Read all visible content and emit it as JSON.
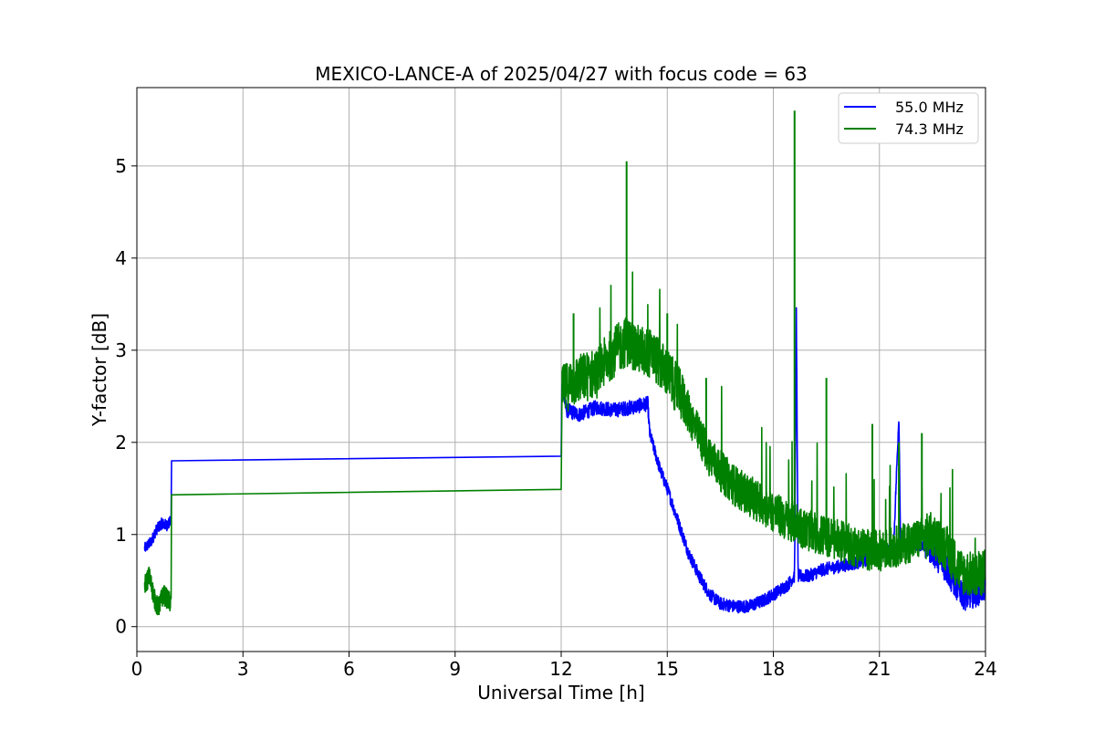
{
  "chart_data": {
    "type": "line",
    "title": "MEXICO-LANCE-A of 2025/04/27 with focus code = 63",
    "xlabel": "Universal Time [h]",
    "ylabel": "Y-factor [dB]",
    "xlim": [
      0,
      24
    ],
    "ylim": [
      -0.27,
      5.85
    ],
    "xticks": [
      0,
      3,
      6,
      9,
      12,
      15,
      18,
      21,
      24
    ],
    "yticks": [
      0,
      1,
      2,
      3,
      4,
      5
    ],
    "grid": true,
    "legend_position": "top-right",
    "series": [
      {
        "name": "55.0 MHz",
        "color": "#0000ff",
        "points": [
          [
            0.22,
            0.85
          ],
          [
            0.4,
            0.92
          ],
          [
            0.55,
            1.05
          ],
          [
            0.7,
            1.12
          ],
          [
            0.85,
            1.1
          ],
          [
            0.97,
            1.15
          ],
          [
            0.98,
            1.8
          ],
          [
            12.0,
            1.85
          ],
          [
            12.02,
            2.6
          ],
          [
            12.15,
            2.35
          ],
          [
            12.5,
            2.3
          ],
          [
            13.0,
            2.38
          ],
          [
            13.5,
            2.35
          ],
          [
            14.0,
            2.38
          ],
          [
            14.45,
            2.42
          ],
          [
            14.5,
            2.1
          ],
          [
            14.8,
            1.7
          ],
          [
            15.0,
            1.5
          ],
          [
            15.3,
            1.15
          ],
          [
            15.6,
            0.8
          ],
          [
            15.9,
            0.55
          ],
          [
            16.2,
            0.35
          ],
          [
            16.5,
            0.25
          ],
          [
            16.9,
            0.22
          ],
          [
            17.3,
            0.22
          ],
          [
            17.7,
            0.28
          ],
          [
            18.0,
            0.35
          ],
          [
            18.4,
            0.45
          ],
          [
            18.6,
            0.55
          ],
          [
            18.65,
            3.4
          ],
          [
            18.7,
            0.55
          ],
          [
            19.0,
            0.55
          ],
          [
            19.4,
            0.62
          ],
          [
            19.8,
            0.65
          ],
          [
            20.2,
            0.68
          ],
          [
            20.6,
            0.72
          ],
          [
            21.0,
            0.78
          ],
          [
            21.4,
            0.85
          ],
          [
            21.55,
            2.3
          ],
          [
            21.6,
            0.88
          ],
          [
            22.0,
            0.9
          ],
          [
            22.4,
            0.88
          ],
          [
            22.8,
            0.7
          ],
          [
            23.1,
            0.5
          ],
          [
            23.4,
            0.35
          ],
          [
            23.7,
            0.38
          ],
          [
            24.0,
            0.45
          ]
        ]
      },
      {
        "name": "74.3 MHz",
        "color": "#008000",
        "points": [
          [
            0.22,
            0.45
          ],
          [
            0.35,
            0.55
          ],
          [
            0.5,
            0.3
          ],
          [
            0.6,
            0.2
          ],
          [
            0.75,
            0.35
          ],
          [
            0.97,
            0.25
          ],
          [
            0.98,
            1.43
          ],
          [
            12.0,
            1.49
          ],
          [
            12.02,
            2.55
          ],
          [
            12.3,
            2.65
          ],
          [
            12.6,
            2.7
          ],
          [
            13.0,
            2.75
          ],
          [
            13.4,
            2.95
          ],
          [
            13.85,
            3.1
          ],
          [
            14.2,
            3.0
          ],
          [
            14.6,
            2.95
          ],
          [
            15.0,
            2.75
          ],
          [
            15.4,
            2.5
          ],
          [
            15.8,
            2.15
          ],
          [
            16.2,
            1.85
          ],
          [
            16.6,
            1.65
          ],
          [
            17.0,
            1.5
          ],
          [
            17.4,
            1.4
          ],
          [
            17.8,
            1.3
          ],
          [
            18.2,
            1.2
          ],
          [
            18.55,
            1.1
          ],
          [
            18.6,
            1.15
          ],
          [
            18.9,
            1.05
          ],
          [
            19.3,
            1.0
          ],
          [
            19.7,
            0.95
          ],
          [
            20.1,
            0.9
          ],
          [
            20.5,
            0.85
          ],
          [
            20.9,
            0.82
          ],
          [
            21.3,
            0.85
          ],
          [
            21.7,
            0.9
          ],
          [
            22.1,
            0.95
          ],
          [
            22.5,
            1.0
          ],
          [
            22.9,
            0.85
          ],
          [
            23.3,
            0.6
          ],
          [
            23.7,
            0.55
          ],
          [
            24.0,
            0.6
          ]
        ],
        "spikes": [
          [
            12.35,
            3.4
          ],
          [
            13.85,
            5.05
          ],
          [
            15.0,
            3.4
          ],
          [
            16.1,
            2.7
          ],
          [
            18.6,
            5.6
          ],
          [
            19.5,
            2.7
          ],
          [
            20.8,
            2.2
          ],
          [
            21.55,
            2.0
          ],
          [
            22.2,
            2.1
          ]
        ]
      }
    ]
  }
}
